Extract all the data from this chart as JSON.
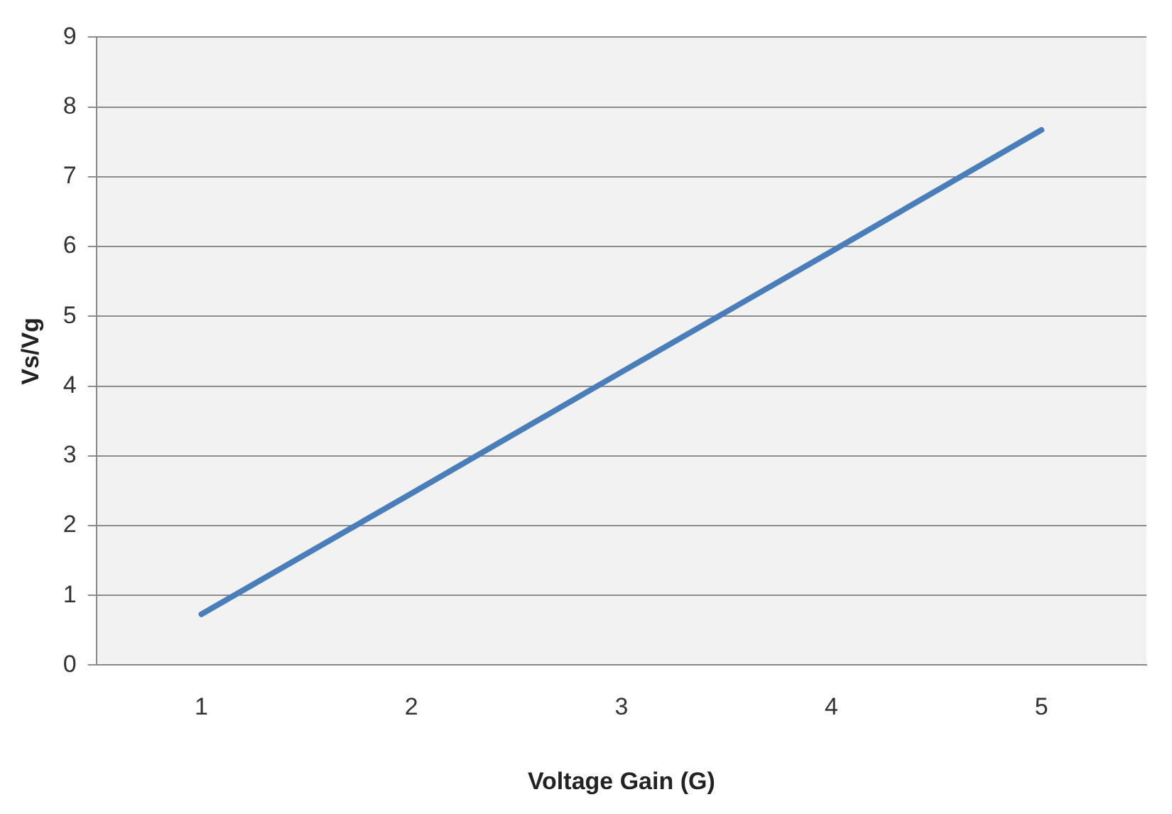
{
  "chart_data": {
    "type": "line",
    "xlabel": "Voltage Gain (G)",
    "ylabel": "Vs/Vg",
    "categories": [
      "1",
      "2",
      "3",
      "4",
      "5"
    ],
    "series": [
      {
        "color": "#4a7ebb",
        "values": [
          0.73,
          2.46,
          4.2,
          5.93,
          7.67
        ]
      }
    ],
    "ylim": [
      0,
      9
    ],
    "yticks": [
      0,
      1,
      2,
      3,
      4,
      5,
      6,
      7,
      8,
      9
    ],
    "grid": "y",
    "legend": false,
    "marker": "none",
    "line_style": "solid"
  }
}
